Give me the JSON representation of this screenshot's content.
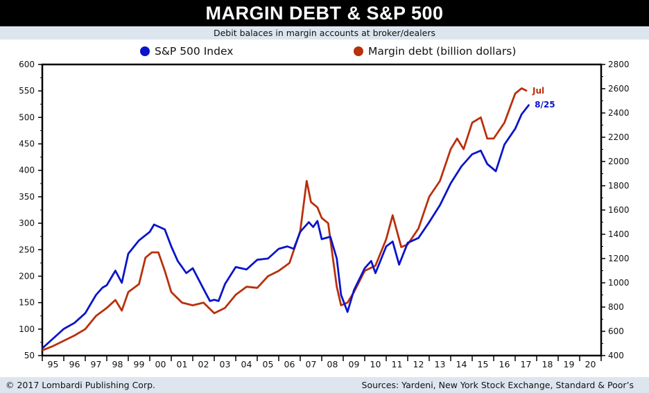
{
  "header": {
    "title": "MARGIN DEBT & S&P 500",
    "subtitle": "Debit balaces in margin accounts at broker/dealers"
  },
  "footer": {
    "copyright": "© 2017 Lombardi Publishing Corp.",
    "sources": "Sources: Yardeni, New York Stock Exchange, Standard & Poor’s"
  },
  "colors": {
    "sp500": "#0a14c8",
    "margin": "#b8300c"
  },
  "chart_data": {
    "type": "line",
    "x_tick_labels": [
      "95",
      "96",
      "97",
      "98",
      "99",
      "00",
      "01",
      "02",
      "03",
      "04",
      "05",
      "06",
      "07",
      "08",
      "09",
      "10",
      "11",
      "12",
      "13",
      "14",
      "15",
      "16",
      "17",
      "18",
      "19",
      "20"
    ],
    "xlim": [
      1995,
      2021
    ],
    "left_axis": {
      "ylim": [
        50,
        600
      ],
      "ticks": [
        "50",
        "100",
        "150",
        "200",
        "250",
        "300",
        "350",
        "400",
        "450",
        "500",
        "550",
        "600"
      ]
    },
    "right_axis": {
      "ylim": [
        400,
        2800
      ],
      "ticks": [
        "400",
        "600",
        "800",
        "1000",
        "1200",
        "1400",
        "1600",
        "1800",
        "2000",
        "2200",
        "2400",
        "2600",
        "2800"
      ]
    },
    "series": [
      {
        "name": "S&P 500 Index",
        "axis": "right",
        "end_label": "8/25",
        "x": [
          1995.0,
          1995.5,
          1996.0,
          1996.5,
          1997.0,
          1997.5,
          1997.8,
          1998.0,
          1998.4,
          1998.7,
          1999.0,
          1999.5,
          2000.0,
          2000.2,
          2000.7,
          2001.0,
          2001.3,
          2001.7,
          2002.0,
          2002.5,
          2002.8,
          2003.0,
          2003.2,
          2003.5,
          2004.0,
          2004.5,
          2005.0,
          2005.5,
          2006.0,
          2006.4,
          2006.7,
          2007.0,
          2007.4,
          2007.6,
          2007.8,
          2008.0,
          2008.4,
          2008.7,
          2008.9,
          2009.2,
          2009.5,
          2010.0,
          2010.3,
          2010.5,
          2011.0,
          2011.3,
          2011.6,
          2012.0,
          2012.5,
          2013.0,
          2013.5,
          2014.0,
          2014.5,
          2015.0,
          2015.4,
          2015.7,
          2016.1,
          2016.5,
          2017.0,
          2017.3,
          2017.65
        ],
        "values": [
          460,
          540,
          620,
          670,
          750,
          900,
          960,
          980,
          1100,
          1000,
          1240,
          1350,
          1420,
          1480,
          1440,
          1300,
          1180,
          1080,
          1120,
          950,
          850,
          860,
          850,
          990,
          1130,
          1110,
          1190,
          1200,
          1280,
          1300,
          1280,
          1420,
          1500,
          1460,
          1510,
          1360,
          1380,
          1200,
          900,
          760,
          940,
          1120,
          1180,
          1080,
          1300,
          1340,
          1150,
          1330,
          1370,
          1500,
          1640,
          1820,
          1960,
          2060,
          2090,
          1980,
          1920,
          2140,
          2270,
          2390,
          2470
        ]
      },
      {
        "name": "Margin debt (billion dollars)",
        "axis": "left",
        "end_label": "Jul",
        "x": [
          1995.0,
          1995.5,
          1996.0,
          1996.5,
          1997.0,
          1997.5,
          1998.0,
          1998.4,
          1998.7,
          1999.0,
          1999.5,
          1999.8,
          2000.1,
          2000.4,
          2000.7,
          2001.0,
          2001.5,
          2002.0,
          2002.5,
          2003.0,
          2003.5,
          2004.0,
          2004.5,
          2005.0,
          2005.5,
          2006.0,
          2006.5,
          2007.0,
          2007.3,
          2007.5,
          2007.8,
          2008.0,
          2008.3,
          2008.7,
          2008.9,
          2009.2,
          2009.5,
          2010.0,
          2010.5,
          2011.0,
          2011.3,
          2011.7,
          2012.0,
          2012.5,
          2013.0,
          2013.5,
          2014.0,
          2014.3,
          2014.6,
          2015.0,
          2015.4,
          2015.7,
          2016.0,
          2016.5,
          2017.0,
          2017.3,
          2017.55
        ],
        "values": [
          60,
          68,
          78,
          88,
          100,
          125,
          140,
          155,
          135,
          170,
          185,
          235,
          245,
          245,
          210,
          170,
          150,
          145,
          150,
          130,
          140,
          165,
          180,
          178,
          200,
          210,
          225,
          285,
          380,
          340,
          330,
          310,
          300,
          180,
          145,
          150,
          170,
          210,
          220,
          270,
          315,
          255,
          260,
          290,
          350,
          380,
          440,
          460,
          440,
          490,
          500,
          460,
          460,
          490,
          545,
          555,
          550
        ]
      }
    ]
  }
}
